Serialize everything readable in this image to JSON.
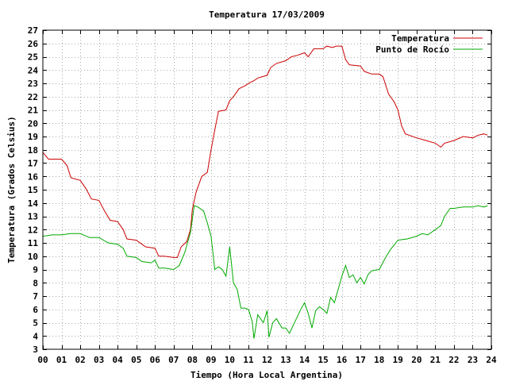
{
  "chart_data": {
    "type": "line",
    "title": "Temperatura 17/03/2009",
    "xlabel": "Tiempo (Hora Local Argentina)",
    "ylabel": "Temperatura (Grados Celsius)",
    "xlim": [
      0,
      24
    ],
    "ylim": [
      3,
      27
    ],
    "grid": true,
    "legend_position": "top-right",
    "x_ticks": [
      "00",
      "01",
      "02",
      "03",
      "04",
      "05",
      "06",
      "07",
      "08",
      "09",
      "10",
      "11",
      "12",
      "13",
      "14",
      "15",
      "16",
      "17",
      "18",
      "19",
      "20",
      "21",
      "22",
      "23",
      "24"
    ],
    "y_ticks": [
      3,
      4,
      5,
      6,
      7,
      8,
      9,
      10,
      11,
      12,
      13,
      14,
      15,
      16,
      17,
      18,
      19,
      20,
      21,
      22,
      23,
      24,
      25,
      26,
      27
    ],
    "series": [
      {
        "name": "Temperatura",
        "color": "#cc0000",
        "points": [
          [
            0,
            17.8
          ],
          [
            0.3,
            17.3
          ],
          [
            0.5,
            17.3
          ],
          [
            1,
            17.3
          ],
          [
            1.3,
            16.8
          ],
          [
            1.5,
            15.9
          ],
          [
            2,
            15.7
          ],
          [
            2.3,
            15.1
          ],
          [
            2.6,
            14.3
          ],
          [
            3,
            14.2
          ],
          [
            3.3,
            13.4
          ],
          [
            3.6,
            12.7
          ],
          [
            4,
            12.6
          ],
          [
            4.3,
            12.0
          ],
          [
            4.5,
            11.3
          ],
          [
            5,
            11.2
          ],
          [
            5.3,
            10.9
          ],
          [
            5.5,
            10.7
          ],
          [
            6,
            10.6
          ],
          [
            6.2,
            10.0
          ],
          [
            6.5,
            10.0
          ],
          [
            7,
            9.9
          ],
          [
            7.2,
            9.9
          ],
          [
            7.4,
            10.7
          ],
          [
            7.7,
            11.1
          ],
          [
            7.9,
            12.0
          ],
          [
            8.0,
            13.5
          ],
          [
            8.2,
            14.8
          ],
          [
            8.5,
            16.0
          ],
          [
            8.8,
            16.3
          ],
          [
            9.0,
            18.0
          ],
          [
            9.2,
            19.5
          ],
          [
            9.4,
            20.9
          ],
          [
            9.8,
            21.0
          ],
          [
            10.0,
            21.7
          ],
          [
            10.2,
            22.0
          ],
          [
            10.5,
            22.6
          ],
          [
            10.8,
            22.8
          ],
          [
            11.0,
            23.0
          ],
          [
            11.3,
            23.2
          ],
          [
            11.5,
            23.4
          ],
          [
            12,
            23.6
          ],
          [
            12.2,
            24.2
          ],
          [
            12.5,
            24.5
          ],
          [
            13,
            24.7
          ],
          [
            13.3,
            25.0
          ],
          [
            13.6,
            25.1
          ],
          [
            14,
            25.3
          ],
          [
            14.2,
            25.0
          ],
          [
            14.5,
            25.6
          ],
          [
            15,
            25.6
          ],
          [
            15.2,
            25.8
          ],
          [
            15.5,
            25.7
          ],
          [
            15.7,
            25.8
          ],
          [
            16,
            25.8
          ],
          [
            16.2,
            24.8
          ],
          [
            16.4,
            24.4
          ],
          [
            17,
            24.3
          ],
          [
            17.2,
            23.9
          ],
          [
            17.6,
            23.7
          ],
          [
            18,
            23.7
          ],
          [
            18.2,
            23.5
          ],
          [
            18.5,
            22.2
          ],
          [
            18.8,
            21.6
          ],
          [
            19,
            21.0
          ],
          [
            19.2,
            19.8
          ],
          [
            19.4,
            19.2
          ],
          [
            20,
            18.9
          ],
          [
            20.5,
            18.7
          ],
          [
            21,
            18.5
          ],
          [
            21.3,
            18.2
          ],
          [
            21.5,
            18.5
          ],
          [
            22,
            18.7
          ],
          [
            22.5,
            19.0
          ],
          [
            23,
            18.9
          ],
          [
            23.3,
            19.1
          ],
          [
            23.6,
            19.2
          ],
          [
            23.8,
            19.1
          ]
        ]
      },
      {
        "name": "Punto de Rocío",
        "color": "#00aa00",
        "points": [
          [
            0,
            11.5
          ],
          [
            0.5,
            11.6
          ],
          [
            1,
            11.6
          ],
          [
            1.5,
            11.7
          ],
          [
            2,
            11.7
          ],
          [
            2.5,
            11.4
          ],
          [
            3,
            11.4
          ],
          [
            3.5,
            11.0
          ],
          [
            4,
            10.9
          ],
          [
            4.3,
            10.6
          ],
          [
            4.5,
            10.0
          ],
          [
            5,
            9.9
          ],
          [
            5.3,
            9.6
          ],
          [
            5.8,
            9.5
          ],
          [
            6,
            9.7
          ],
          [
            6.2,
            9.1
          ],
          [
            6.5,
            9.1
          ],
          [
            7,
            9.0
          ],
          [
            7.3,
            9.3
          ],
          [
            7.6,
            10.3
          ],
          [
            7.9,
            11.8
          ],
          [
            8.1,
            13.8
          ],
          [
            8.3,
            13.7
          ],
          [
            8.6,
            13.4
          ],
          [
            8.8,
            12.5
          ],
          [
            9.0,
            11.5
          ],
          [
            9.2,
            9.0
          ],
          [
            9.4,
            9.2
          ],
          [
            9.6,
            9.0
          ],
          [
            9.8,
            8.5
          ],
          [
            10.0,
            10.7
          ],
          [
            10.2,
            8.0
          ],
          [
            10.4,
            7.5
          ],
          [
            10.6,
            6.1
          ],
          [
            10.8,
            6.1
          ],
          [
            11.0,
            6.0
          ],
          [
            11.2,
            5.1
          ],
          [
            11.3,
            3.8
          ],
          [
            11.5,
            5.6
          ],
          [
            11.8,
            5.0
          ],
          [
            12,
            5.9
          ],
          [
            12.1,
            3.9
          ],
          [
            12.3,
            5.0
          ],
          [
            12.5,
            5.3
          ],
          [
            12.8,
            4.6
          ],
          [
            13.0,
            4.6
          ],
          [
            13.2,
            4.2
          ],
          [
            13.5,
            5.1
          ],
          [
            13.8,
            6.0
          ],
          [
            14.0,
            6.5
          ],
          [
            14.2,
            5.7
          ],
          [
            14.4,
            4.6
          ],
          [
            14.6,
            5.9
          ],
          [
            14.8,
            6.2
          ],
          [
            15.0,
            6.0
          ],
          [
            15.2,
            5.7
          ],
          [
            15.4,
            6.9
          ],
          [
            15.6,
            6.5
          ],
          [
            15.8,
            7.5
          ],
          [
            16.0,
            8.5
          ],
          [
            16.2,
            9.3
          ],
          [
            16.4,
            8.4
          ],
          [
            16.6,
            8.6
          ],
          [
            16.8,
            8.0
          ],
          [
            17.0,
            8.4
          ],
          [
            17.2,
            7.9
          ],
          [
            17.4,
            8.6
          ],
          [
            17.6,
            8.9
          ],
          [
            18.0,
            9.0
          ],
          [
            18.3,
            9.8
          ],
          [
            18.6,
            10.5
          ],
          [
            19.0,
            11.2
          ],
          [
            19.5,
            11.3
          ],
          [
            20.0,
            11.5
          ],
          [
            20.3,
            11.7
          ],
          [
            20.6,
            11.6
          ],
          [
            21.0,
            12.0
          ],
          [
            21.3,
            12.3
          ],
          [
            21.5,
            13.0
          ],
          [
            21.8,
            13.6
          ],
          [
            22,
            13.6
          ],
          [
            22.5,
            13.7
          ],
          [
            23,
            13.7
          ],
          [
            23.3,
            13.8
          ],
          [
            23.6,
            13.7
          ],
          [
            23.8,
            13.8
          ]
        ]
      }
    ]
  }
}
